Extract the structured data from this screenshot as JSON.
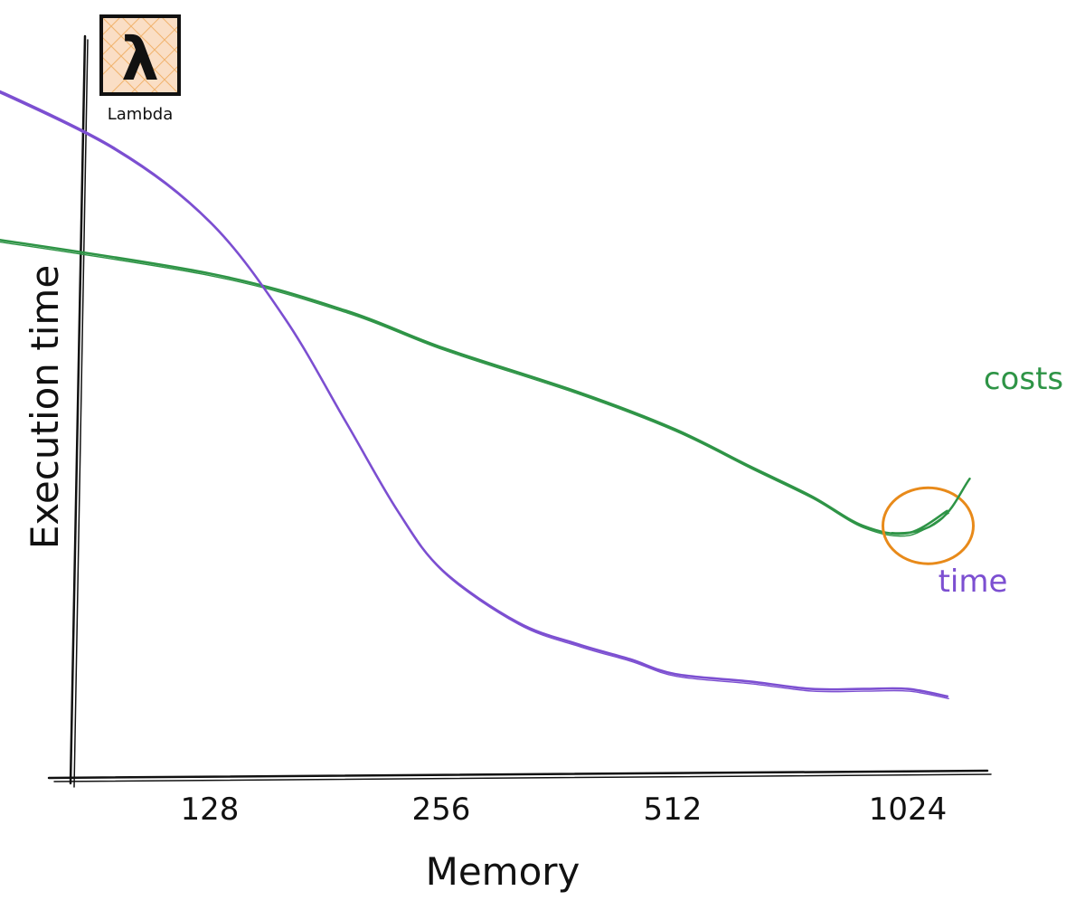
{
  "logo": {
    "label": "Lambda",
    "icon": "lambda-icon",
    "icon_bg_color": "#f6c89f",
    "glyph": "λ"
  },
  "chart_data": {
    "type": "line",
    "xlabel": "Memory",
    "ylabel": "Execution time",
    "categories": [
      "128",
      "256",
      "512",
      "1024"
    ],
    "series": [
      {
        "name": "costs",
        "color": "#2e9446",
        "x": [
          64,
          128,
          192,
          256,
          384,
          512,
          640,
          768,
          896,
          1024,
          1152
        ],
        "y": [
          0.73,
          0.68,
          0.63,
          0.58,
          0.52,
          0.47,
          0.42,
          0.38,
          0.34,
          0.33,
          0.36
        ]
      },
      {
        "name": "time",
        "color": "#7c4fd1",
        "x": [
          64,
          96,
          128,
          160,
          192,
          224,
          256,
          320,
          384,
          448,
          512,
          640,
          768,
          896,
          1024,
          1152
        ],
        "y": [
          0.94,
          0.85,
          0.75,
          0.62,
          0.48,
          0.36,
          0.28,
          0.21,
          0.18,
          0.16,
          0.14,
          0.13,
          0.12,
          0.12,
          0.12,
          0.11
        ]
      }
    ],
    "annotation": {
      "target_series": "costs",
      "x": 1088,
      "y": 0.34,
      "color": "#e88a1a"
    },
    "y_ticks": [],
    "grid": false,
    "legend": "none"
  }
}
